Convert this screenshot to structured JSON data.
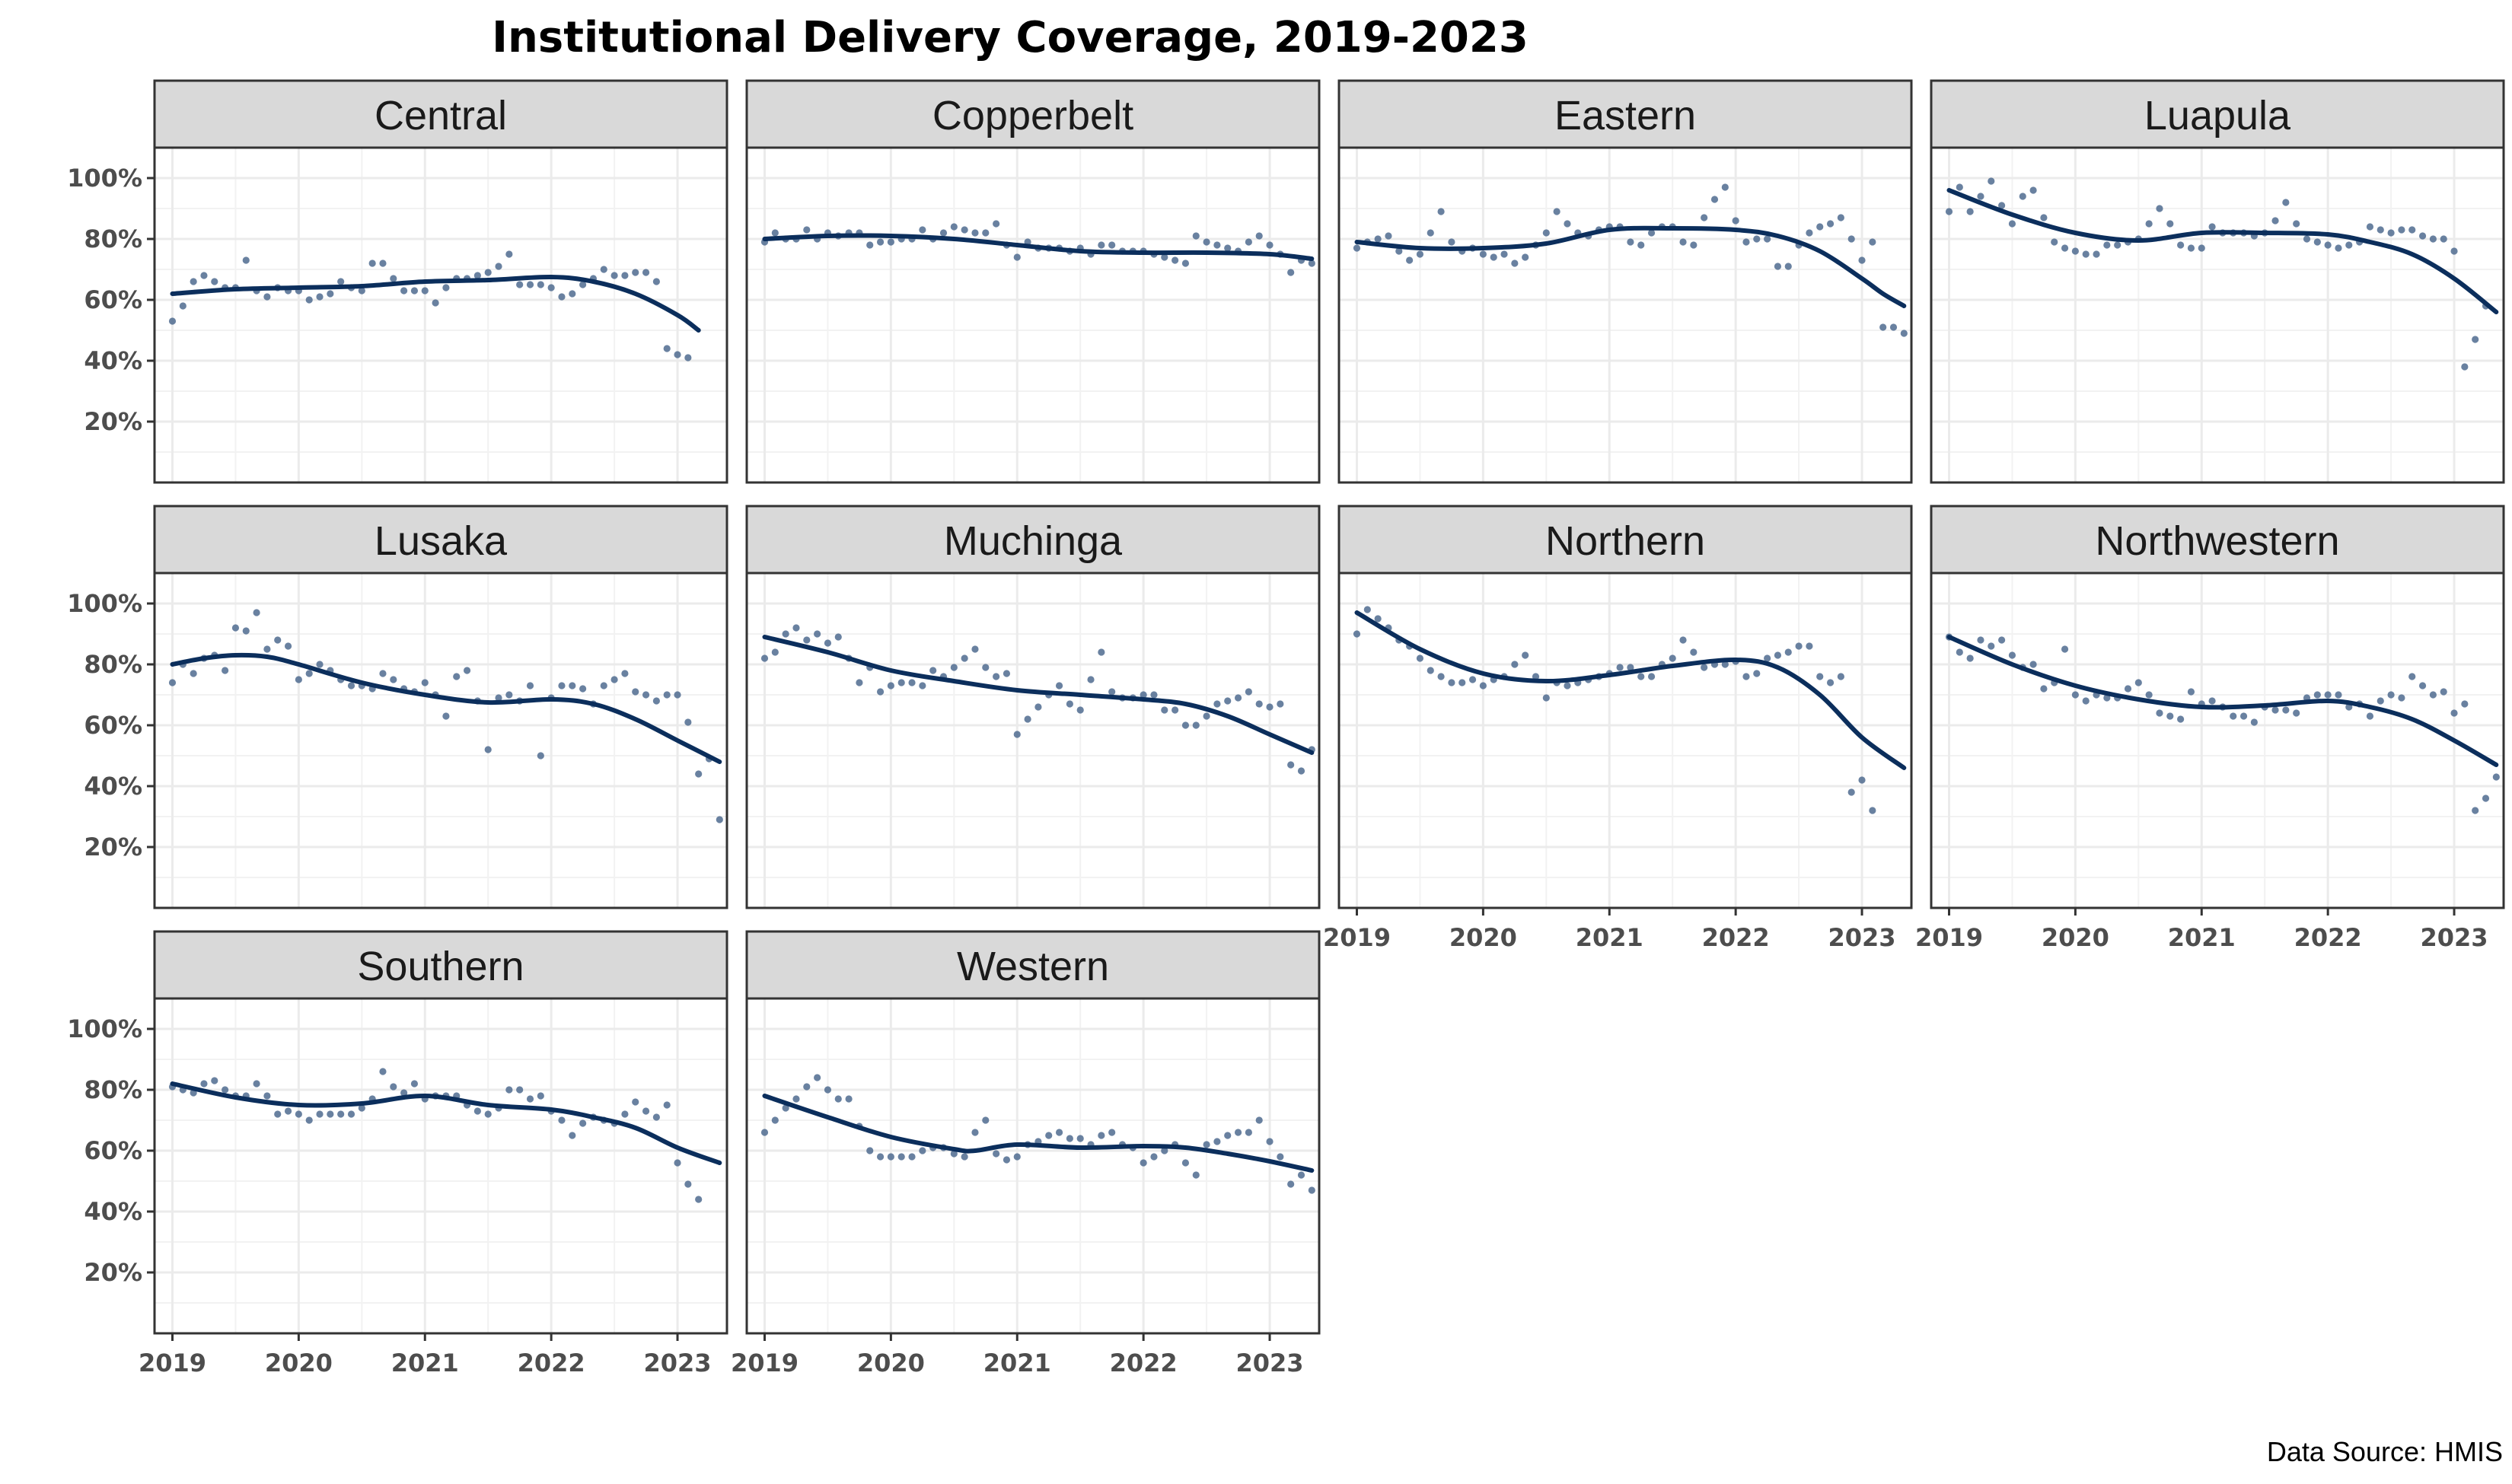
{
  "chart_data": {
    "type": "line",
    "title": "Institutional Delivery Coverage, 2019-2023",
    "caption": "Data Source: HMIS",
    "xlabel": "",
    "ylabel": "",
    "x_start": "2019-01",
    "x_ticks": [
      "2019",
      "2020",
      "2021",
      "2022",
      "2023"
    ],
    "y_ticks": [
      "20%",
      "40%",
      "60%",
      "80%",
      "100%"
    ],
    "y_tick_values": [
      20,
      40,
      60,
      80,
      100
    ],
    "ylim": [
      0,
      110
    ],
    "xlim": [
      -1.7,
      52.7
    ],
    "grid": true,
    "layout": {
      "ncol": 4,
      "nrow": 3
    },
    "colors": {
      "points": "#4f6b8f",
      "trend": "#0b2e5c",
      "strip_bg": "#d9d9d9",
      "grid": "#ebebeb",
      "border": "#333333"
    },
    "panels": [
      {
        "name": "Central",
        "points": [
          53,
          58,
          66,
          68,
          66,
          64,
          64,
          73,
          63,
          61,
          64,
          63,
          63,
          60,
          61,
          62,
          66,
          64,
          63,
          72,
          72,
          67,
          63,
          63,
          63,
          59,
          64,
          67,
          67,
          68,
          69,
          71,
          75,
          65,
          65,
          65,
          64,
          61,
          62,
          65,
          67,
          70,
          68,
          68,
          69,
          69,
          66,
          44,
          42,
          41
        ],
        "trend": [
          [
            0,
            62
          ],
          [
            6,
            63.5
          ],
          [
            12,
            64
          ],
          [
            18,
            64.5
          ],
          [
            24,
            66
          ],
          [
            30,
            66.5
          ],
          [
            36,
            67.5
          ],
          [
            40,
            66
          ],
          [
            44,
            62
          ],
          [
            48,
            55
          ],
          [
            50,
            50
          ]
        ]
      },
      {
        "name": "Copperbelt",
        "points": [
          79,
          82,
          80,
          80,
          83,
          80,
          82,
          81,
          82,
          82,
          78,
          79,
          79,
          80,
          80,
          83,
          80,
          82,
          84,
          83,
          82,
          82,
          85,
          78,
          74,
          79,
          77,
          77,
          77,
          76,
          77,
          75,
          78,
          78,
          76,
          76,
          76,
          75,
          74,
          73,
          72,
          81,
          79,
          78,
          77,
          76,
          79,
          81,
          78,
          75,
          69,
          73,
          72
        ],
        "trend": [
          [
            0,
            80
          ],
          [
            6,
            81
          ],
          [
            12,
            81
          ],
          [
            18,
            80
          ],
          [
            24,
            78
          ],
          [
            30,
            76
          ],
          [
            36,
            75.5
          ],
          [
            42,
            75.5
          ],
          [
            48,
            75
          ],
          [
            52,
            73.5
          ]
        ]
      },
      {
        "name": "Eastern",
        "points": [
          77,
          79,
          80,
          81,
          76,
          73,
          75,
          82,
          89,
          79,
          76,
          77,
          75,
          74,
          75,
          72,
          74,
          78,
          82,
          89,
          85,
          82,
          81,
          83,
          84,
          84,
          79,
          78,
          82,
          84,
          84,
          79,
          78,
          87,
          93,
          97,
          86,
          79,
          80,
          80,
          71,
          71,
          78,
          82,
          84,
          85,
          87,
          80,
          73,
          79,
          51,
          51,
          49
        ],
        "trend": [
          [
            0,
            79
          ],
          [
            6,
            77
          ],
          [
            12,
            77
          ],
          [
            18,
            78.5
          ],
          [
            24,
            83
          ],
          [
            30,
            83.5
          ],
          [
            36,
            83
          ],
          [
            40,
            81
          ],
          [
            44,
            76
          ],
          [
            48,
            67
          ],
          [
            50,
            62
          ],
          [
            52,
            58
          ]
        ]
      },
      {
        "name": "Luapula",
        "points": [
          89,
          97,
          89,
          94,
          99,
          91,
          85,
          94,
          96,
          87,
          79,
          77,
          76,
          75,
          75,
          78,
          78,
          79,
          80,
          85,
          90,
          85,
          78,
          77,
          77,
          84,
          82,
          82,
          82,
          81,
          82,
          86,
          92,
          85,
          80,
          79,
          78,
          77,
          78,
          79,
          84,
          83,
          82,
          83,
          83,
          81,
          80,
          80,
          76,
          38,
          47,
          58
        ],
        "trend": [
          [
            0,
            96
          ],
          [
            6,
            88
          ],
          [
            12,
            82
          ],
          [
            18,
            79.5
          ],
          [
            24,
            82
          ],
          [
            30,
            82
          ],
          [
            36,
            81.5
          ],
          [
            40,
            79
          ],
          [
            44,
            75
          ],
          [
            48,
            67
          ],
          [
            52,
            56
          ]
        ]
      },
      {
        "name": "Lusaka",
        "points": [
          74,
          80,
          77,
          82,
          83,
          78,
          92,
          91,
          97,
          85,
          88,
          86,
          75,
          77,
          80,
          78,
          75,
          73,
          73,
          72,
          77,
          75,
          72,
          71,
          74,
          70,
          63,
          76,
          78,
          68,
          52,
          69,
          70,
          68,
          73,
          50,
          69,
          73,
          73,
          72,
          67,
          73,
          75,
          77,
          71,
          70,
          68,
          70,
          70,
          61,
          44,
          49,
          29
        ],
        "trend": [
          [
            0,
            80
          ],
          [
            3,
            82
          ],
          [
            6,
            83
          ],
          [
            9,
            82.5
          ],
          [
            12,
            80
          ],
          [
            18,
            74
          ],
          [
            24,
            70
          ],
          [
            30,
            67.5
          ],
          [
            36,
            68.5
          ],
          [
            40,
            67
          ],
          [
            44,
            62
          ],
          [
            48,
            55
          ],
          [
            52,
            48
          ]
        ]
      },
      {
        "name": "Muchinga",
        "points": [
          82,
          84,
          90,
          92,
          88,
          90,
          87,
          89,
          82,
          74,
          79,
          71,
          73,
          74,
          74,
          73,
          78,
          76,
          79,
          82,
          85,
          79,
          76,
          77,
          57,
          62,
          66,
          70,
          73,
          67,
          65,
          75,
          84,
          71,
          69,
          69,
          70,
          70,
          65,
          65,
          60,
          60,
          63,
          67,
          68,
          69,
          71,
          67,
          66,
          67,
          47,
          45,
          52
        ],
        "trend": [
          [
            0,
            89
          ],
          [
            6,
            84
          ],
          [
            12,
            78
          ],
          [
            18,
            74.5
          ],
          [
            24,
            71.5
          ],
          [
            30,
            70
          ],
          [
            36,
            68.5
          ],
          [
            40,
            67
          ],
          [
            44,
            63
          ],
          [
            48,
            57
          ],
          [
            52,
            51
          ]
        ]
      },
      {
        "name": "Northern",
        "points": [
          90,
          98,
          95,
          92,
          88,
          86,
          82,
          78,
          76,
          74,
          74,
          75,
          73,
          75,
          76,
          80,
          83,
          76,
          69,
          74,
          73,
          74,
          75,
          76,
          77,
          79,
          79,
          76,
          76,
          80,
          82,
          88,
          84,
          79,
          80,
          80,
          81,
          76,
          77,
          82,
          83,
          84,
          86,
          86,
          76,
          74,
          76,
          38,
          42,
          32
        ],
        "trend": [
          [
            0,
            97
          ],
          [
            6,
            85
          ],
          [
            12,
            77
          ],
          [
            18,
            74.5
          ],
          [
            24,
            76.5
          ],
          [
            30,
            79.5
          ],
          [
            36,
            81.5
          ],
          [
            40,
            79
          ],
          [
            44,
            70
          ],
          [
            48,
            56
          ],
          [
            52,
            46
          ]
        ]
      },
      {
        "name": "Northwestern",
        "points": [
          89,
          84,
          82,
          88,
          86,
          88,
          83,
          79,
          80,
          72,
          74,
          85,
          70,
          68,
          70,
          69,
          69,
          72,
          74,
          70,
          64,
          63,
          62,
          71,
          67,
          68,
          66,
          63,
          63,
          61,
          66,
          65,
          65,
          64,
          69,
          70,
          70,
          70,
          66,
          67,
          63,
          68,
          70,
          69,
          76,
          73,
          70,
          71,
          64,
          67,
          32,
          36,
          43
        ],
        "trend": [
          [
            0,
            89
          ],
          [
            6,
            80
          ],
          [
            12,
            73
          ],
          [
            18,
            68.5
          ],
          [
            24,
            66
          ],
          [
            30,
            66.5
          ],
          [
            36,
            68
          ],
          [
            40,
            66
          ],
          [
            44,
            62
          ],
          [
            48,
            55
          ],
          [
            52,
            47
          ]
        ]
      },
      {
        "name": "Southern",
        "points": [
          81,
          80,
          79,
          82,
          83,
          80,
          78,
          78,
          82,
          78,
          72,
          73,
          72,
          70,
          72,
          72,
          72,
          72,
          74,
          77,
          86,
          81,
          79,
          82,
          77,
          78,
          78,
          78,
          75,
          73,
          72,
          74,
          80,
          80,
          77,
          78,
          73,
          70,
          65,
          69,
          71,
          70,
          69,
          72,
          76,
          73,
          71,
          75,
          56,
          49,
          44
        ],
        "trend": [
          [
            0,
            82
          ],
          [
            6,
            77.5
          ],
          [
            12,
            75
          ],
          [
            18,
            75.5
          ],
          [
            24,
            78
          ],
          [
            30,
            75
          ],
          [
            36,
            73.5
          ],
          [
            40,
            71
          ],
          [
            44,
            67.5
          ],
          [
            48,
            61
          ],
          [
            52,
            56
          ]
        ]
      },
      {
        "name": "Western",
        "points": [
          66,
          70,
          74,
          77,
          81,
          84,
          80,
          77,
          77,
          68,
          60,
          58,
          58,
          58,
          58,
          60,
          61,
          61,
          59,
          58,
          66,
          70,
          59,
          57,
          58,
          62,
          63,
          65,
          66,
          64,
          64,
          62,
          65,
          66,
          62,
          61,
          56,
          58,
          60,
          62,
          56,
          52,
          62,
          63,
          65,
          66,
          66,
          70,
          63,
          58,
          49,
          52,
          47
        ],
        "trend": [
          [
            0,
            78
          ],
          [
            6,
            71
          ],
          [
            12,
            64.5
          ],
          [
            18,
            60.5
          ],
          [
            20,
            60
          ],
          [
            24,
            62
          ],
          [
            30,
            61
          ],
          [
            36,
            61.5
          ],
          [
            40,
            61
          ],
          [
            44,
            59
          ],
          [
            48,
            56.5
          ],
          [
            52,
            53.5
          ]
        ]
      }
    ]
  }
}
